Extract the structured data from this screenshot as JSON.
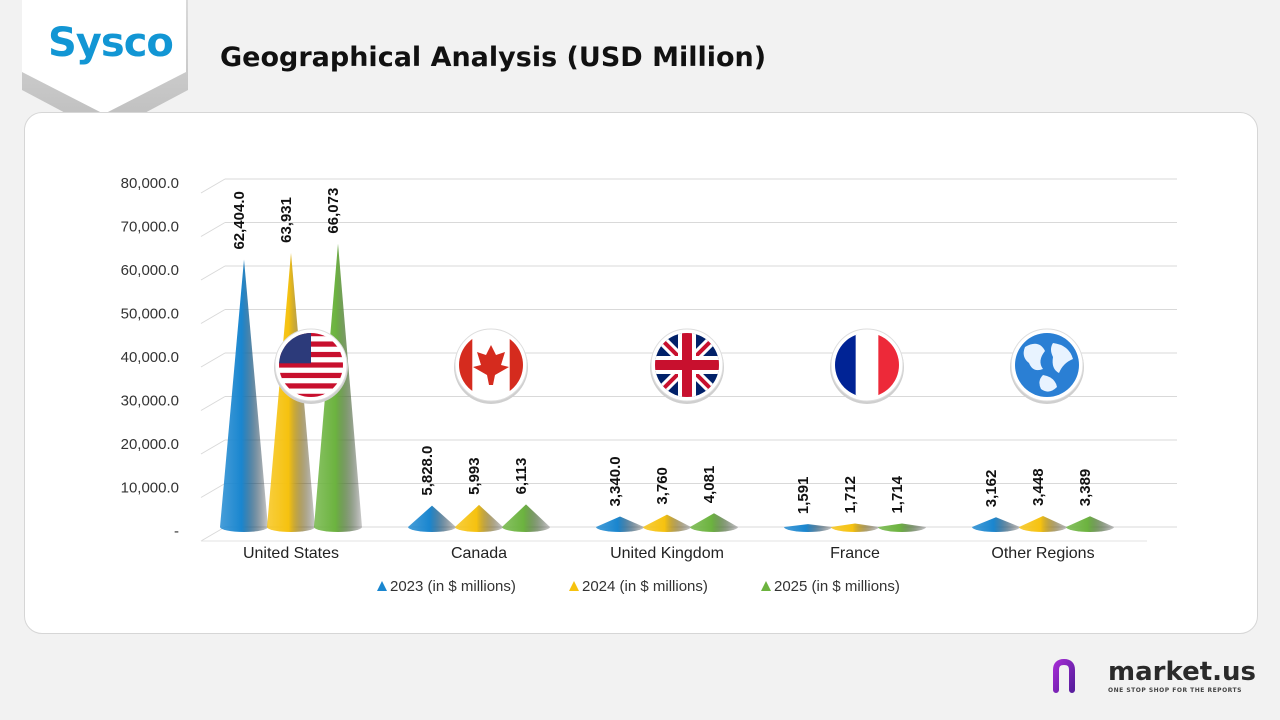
{
  "header": {
    "logo_text": "Sysco",
    "title": "Geographical Analysis (USD Million)"
  },
  "branding": {
    "name": "market.us",
    "tagline": "ONE STOP SHOP FOR THE REPORTS"
  },
  "colors": {
    "series_2023": "#1a86cf",
    "series_2024": "#f6c20f",
    "series_2025": "#6cb33f",
    "logo": "#1296d4",
    "brand_icon": "#6b2fb3"
  },
  "chart_data": {
    "type": "bar",
    "style": "3d-cone",
    "title": "Geographical Analysis (USD Million)",
    "categories": [
      "United States",
      "Canada",
      "United Kingdom",
      "France",
      "Other Regions"
    ],
    "category_icons": [
      "usa-flag-icon",
      "canada-flag-icon",
      "uk-flag-icon",
      "france-flag-icon",
      "globe-icon"
    ],
    "series": [
      {
        "name": "2023 (in $ millions)",
        "values": [
          62404.0,
          5828.0,
          3340.0,
          1591,
          3162
        ],
        "labels": [
          "62,404.0",
          "5,828.0",
          "3,340.0",
          "1,591",
          "3,162"
        ]
      },
      {
        "name": "2024 (in $ millions)",
        "values": [
          63931,
          5993,
          3760,
          1712,
          3448
        ],
        "labels": [
          "63,931",
          "5,993",
          "3,760",
          "1,712",
          "3,448"
        ]
      },
      {
        "name": "2025 (in $ millions)",
        "values": [
          66073,
          6113,
          4081,
          1714,
          3389
        ],
        "labels": [
          "66,073",
          "6,113",
          "4,081",
          "1,714",
          "3,389"
        ]
      }
    ],
    "ylim": [
      0,
      80000
    ],
    "yticks": [
      0,
      10000,
      20000,
      30000,
      40000,
      50000,
      60000,
      70000,
      80000
    ],
    "ytick_labels": [
      "-",
      "10,000.0",
      "20,000.0",
      "30,000.0",
      "40,000.0",
      "50,000.0",
      "60,000.0",
      "70,000.0",
      "80,000.0"
    ],
    "grid": true,
    "legend_position": "bottom"
  }
}
